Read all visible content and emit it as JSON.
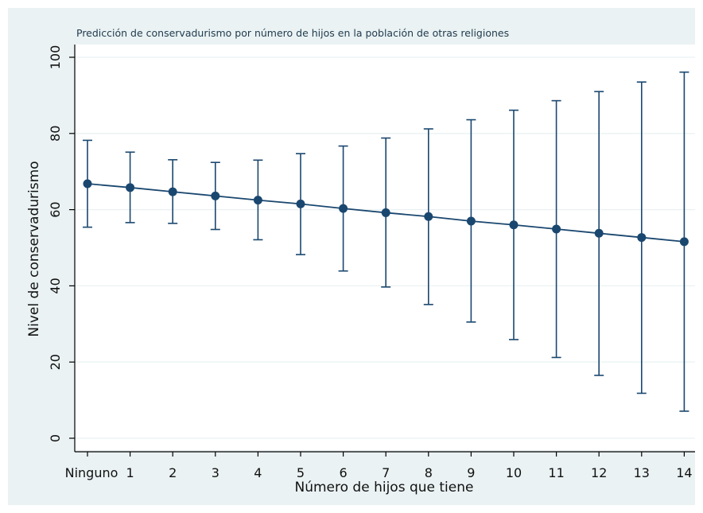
{
  "chart_data": {
    "type": "scatter",
    "title": "Predicción de conservadurismo por número de hijos en la población de otras religiones",
    "xlabel": "Número de hijos que tiene",
    "ylabel": "Nivel de conservadurismo",
    "categories": [
      "Ninguno",
      "1",
      "2",
      "3",
      "4",
      "5",
      "6",
      "7",
      "8",
      "9",
      "10",
      "11",
      "12",
      "13",
      "14"
    ],
    "ylim": [
      0,
      100
    ],
    "yticks": [
      "0",
      "20",
      "40",
      "60",
      "80",
      "100"
    ],
    "grid": true,
    "series": [
      {
        "values": [
          66.8,
          65.8,
          64.7,
          63.6,
          62.5,
          61.5,
          60.3,
          59.2,
          58.2,
          57.0,
          56.0,
          54.9,
          53.8,
          52.7,
          51.6
        ],
        "ci_lower": [
          55.4,
          56.6,
          56.4,
          54.8,
          52.1,
          48.2,
          43.9,
          39.7,
          35.1,
          30.5,
          25.9,
          21.2,
          16.5,
          11.8,
          7.1
        ],
        "ci_upper": [
          78.2,
          75.1,
          73.1,
          72.4,
          73.0,
          74.7,
          76.7,
          78.8,
          81.2,
          83.6,
          86.1,
          88.6,
          91.0,
          93.5,
          96.1
        ]
      }
    ],
    "colors": {
      "background": "#eaf2f3",
      "plot_area": "#ffffff",
      "marker": "#1a476f",
      "line": "#1a476f",
      "grid": "#eaf2f3"
    }
  }
}
